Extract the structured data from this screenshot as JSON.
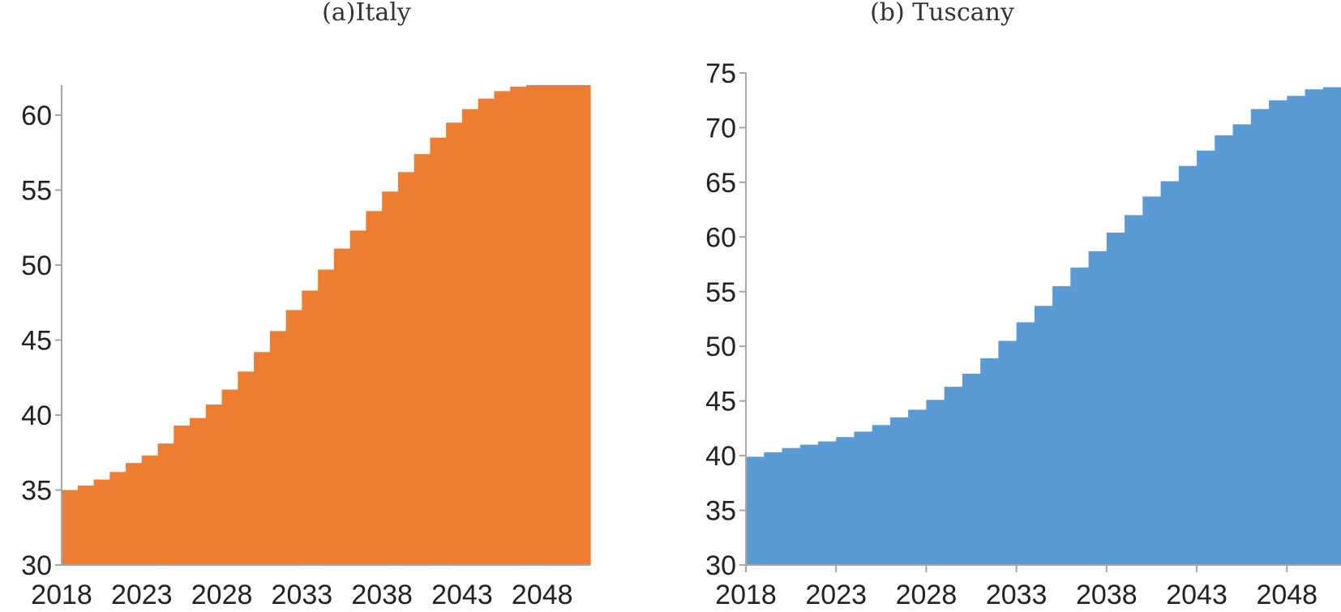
{
  "chart_data": [
    {
      "type": "area",
      "title": "(a)Italy",
      "xlabel": "",
      "ylabel": "",
      "color": "#ED7D31",
      "ylim": [
        30,
        62
      ],
      "yticks": [
        30,
        35,
        40,
        45,
        50,
        55,
        60
      ],
      "ytick_labels": [
        "30",
        "35",
        "40",
        "45",
        "50",
        "55",
        "60"
      ],
      "xtick_labels": [
        "2018",
        "2023",
        "2028",
        "2033",
        "2038",
        "2043",
        "2048"
      ],
      "xtick_marks": false,
      "x": [
        2018,
        2019,
        2020,
        2021,
        2022,
        2023,
        2024,
        2025,
        2026,
        2027,
        2028,
        2029,
        2030,
        2031,
        2032,
        2033,
        2034,
        2035,
        2036,
        2037,
        2038,
        2039,
        2040,
        2041,
        2042,
        2043,
        2044,
        2045,
        2046,
        2047,
        2048,
        2049,
        2050
      ],
      "values": [
        35.0,
        35.3,
        35.7,
        36.2,
        36.8,
        37.3,
        38.1,
        39.3,
        39.8,
        40.7,
        41.7,
        42.9,
        44.2,
        45.6,
        47.0,
        48.3,
        49.7,
        51.1,
        52.3,
        53.6,
        54.9,
        56.2,
        57.4,
        58.5,
        59.5,
        60.4,
        61.1,
        61.6,
        61.9,
        62.0,
        62.0,
        62.0,
        62.0
      ]
    },
    {
      "type": "area",
      "title": "(b) Tuscany",
      "xlabel": "",
      "ylabel": "",
      "color": "#5B9BD5",
      "ylim": [
        30,
        75
      ],
      "yticks": [
        30,
        35,
        40,
        45,
        50,
        55,
        60,
        65,
        70,
        75
      ],
      "ytick_labels": [
        "30",
        "35",
        "40",
        "45",
        "50",
        "55",
        "60",
        "65",
        "70",
        "75"
      ],
      "xtick_labels": [
        "2018",
        "2023",
        "2028",
        "2033",
        "2038",
        "2043",
        "2048"
      ],
      "xtick_marks": true,
      "x": [
        2018,
        2019,
        2020,
        2021,
        2022,
        2023,
        2024,
        2025,
        2026,
        2027,
        2028,
        2029,
        2030,
        2031,
        2032,
        2033,
        2034,
        2035,
        2036,
        2037,
        2038,
        2039,
        2040,
        2041,
        2042,
        2043,
        2044,
        2045,
        2046,
        2047,
        2048,
        2049,
        2050
      ],
      "values": [
        39.9,
        40.3,
        40.7,
        41.0,
        41.3,
        41.7,
        42.2,
        42.8,
        43.5,
        44.2,
        45.1,
        46.3,
        47.5,
        48.9,
        50.5,
        52.2,
        53.7,
        55.5,
        57.2,
        58.7,
        60.4,
        62.0,
        63.7,
        65.1,
        66.5,
        67.9,
        69.3,
        70.3,
        71.7,
        72.5,
        72.9,
        73.5,
        73.7
      ]
    }
  ]
}
